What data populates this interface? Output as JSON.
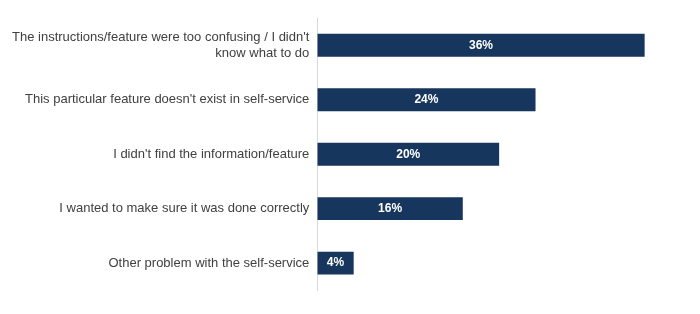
{
  "chart_data": {
    "type": "bar",
    "orientation": "horizontal",
    "categories": [
      "The instructions/feature were too confusing / I didn't know what to do",
      "This particular feature doesn't exist in self-service",
      "I didn't find the information/feature",
      "I wanted to make sure it was done correctly",
      "Other problem with the self-service"
    ],
    "values": [
      36,
      24,
      20,
      16,
      4
    ],
    "value_labels": [
      "36%",
      "24%",
      "20%",
      "16%",
      "4%"
    ],
    "color": "#17365d",
    "grid": false,
    "data_labels": true,
    "tick_labels": "y"
  }
}
